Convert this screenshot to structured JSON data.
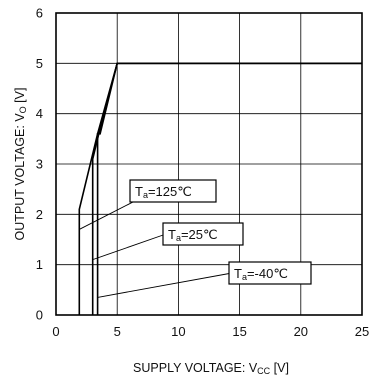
{
  "chart_data": {
    "type": "line",
    "xlabel": "SUPPLY VOLTAGE: V",
    "xlabel_sub": "CC",
    "xlabel_unit": " [V]",
    "ylabel": "OUTPUT VOLTAGE: V",
    "ylabel_sub": "O",
    "ylabel_unit": " [V]",
    "xlim": [
      0,
      25
    ],
    "ylim": [
      0,
      6
    ],
    "x_ticks": [
      "0",
      "5",
      "10",
      "15",
      "20",
      "25"
    ],
    "y_ticks": [
      "0",
      "1",
      "2",
      "3",
      "4",
      "5",
      "6"
    ],
    "grid": true,
    "series": [
      {
        "name": "Ta=125°C",
        "label_main": "T",
        "label_sub": "a",
        "label_rest": "=125℃",
        "x": [
          1.9,
          1.9,
          3.4,
          5.0,
          25.0
        ],
        "y": [
          0,
          2.1,
          3.6,
          5.0,
          5.0
        ]
      },
      {
        "name": "Ta=25°C",
        "label_main": "T",
        "label_sub": "a",
        "label_rest": "=25℃",
        "x": [
          3.0,
          3.0,
          3.5,
          5.0,
          25.0
        ],
        "y": [
          0,
          3.1,
          3.6,
          5.0,
          5.0
        ]
      },
      {
        "name": "Ta=-40°C",
        "label_main": "T",
        "label_sub": "a",
        "label_rest": "=-40℃",
        "x": [
          3.4,
          3.4,
          3.6,
          5.0,
          25.0
        ],
        "y": [
          0,
          3.6,
          3.6,
          5.0,
          5.0
        ]
      }
    ]
  }
}
